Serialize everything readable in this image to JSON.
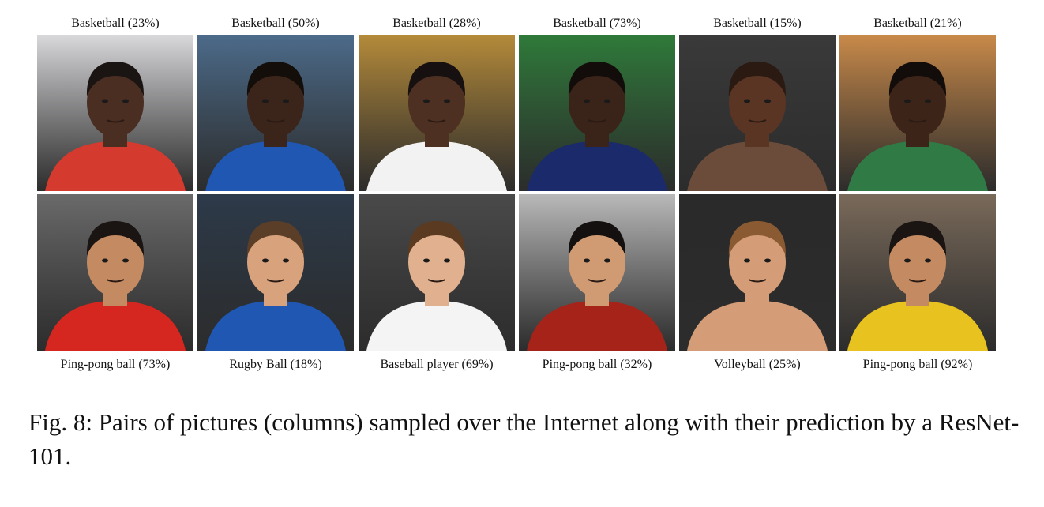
{
  "figure": {
    "columns": [
      {
        "top": {
          "label": "Basketball (23%)",
          "bg": "#d9d9dc",
          "skin": "#4a2e22",
          "hair": "#1a1412",
          "shirt": "#d43a2e",
          "icon": "soccer-player-red-jersey-photo"
        },
        "bottom": {
          "label": "Ping-pong ball (73%)",
          "bg": "#6a6a6a",
          "skin": "#c48b63",
          "hair": "#1a1412",
          "shirt": "#d5261f",
          "icon": "soccer-player-evergrande-jersey-photo"
        }
      },
      {
        "top": {
          "label": "Basketball (50%)",
          "bg": "#4c6b8a",
          "skin": "#3b2419",
          "hair": "#140e0b",
          "shirt": "#1f57b2",
          "icon": "soccer-player-italy-jersey-photo"
        },
        "bottom": {
          "label": "Rugby Ball (18%)",
          "bg": "#2d3a4a",
          "skin": "#d8a27c",
          "hair": "#5a3e28",
          "shirt": "#1f57b2",
          "icon": "soccer-player-italy-jersey-8-photo"
        }
      },
      {
        "top": {
          "label": "Basketball (28%)",
          "bg": "#b58b3a",
          "skin": "#4d3022",
          "hair": "#161010",
          "shirt": "#f2f2f2",
          "icon": "hockey-fan-white-jersey-photo"
        },
        "bottom": {
          "label": "Baseball player (69%)",
          "bg": "#4a4a4a",
          "skin": "#e1b08e",
          "hair": "#5b3a22",
          "shirt": "#f4f4f4",
          "icon": "hockey-player-white-jersey-photo"
        }
      },
      {
        "top": {
          "label": "Basketball (73%)",
          "bg": "#2f7a3a",
          "skin": "#3a2318",
          "hair": "#120c0a",
          "shirt": "#1a2a6a",
          "icon": "athlete-woman-portrait-photo"
        },
        "bottom": {
          "label": "Ping-pong ball (32%)",
          "bg": "#b9b9b9",
          "skin": "#d09a72",
          "hair": "#141010",
          "shirt": "#a52318",
          "icon": "weightlifter-straining-photo"
        }
      },
      {
        "top": {
          "label": "Basketball (15%)",
          "bg": "#3a3a3a",
          "skin": "#5a3524",
          "hair": "#2a1a12",
          "shirt": "#6b4c3a",
          "icon": "boxer-portrait-photo"
        },
        "bottom": {
          "label": "Volleyball (25%)",
          "bg": "#2a2a2a",
          "skin": "#d49d77",
          "hair": "#8a5a32",
          "shirt": "#d49d77",
          "icon": "fighter-tattooed-photo"
        }
      },
      {
        "top": {
          "label": "Basketball (21%)",
          "bg": "#c98a4a",
          "skin": "#3d2419",
          "hair": "#120c0a",
          "shirt": "#2f7a45",
          "icon": "soccer-match-action-photo"
        },
        "bottom": {
          "label": "Ping-pong ball (92%)",
          "bg": "#7a6a5a",
          "skin": "#c48b63",
          "hair": "#1a1412",
          "shirt": "#e8c21e",
          "icon": "soccer-match-yellow-red-photo"
        }
      }
    ],
    "caption": "Fig. 8: Pairs of pictures (columns) sampled over the Internet along with their prediction by a ResNet-101."
  }
}
